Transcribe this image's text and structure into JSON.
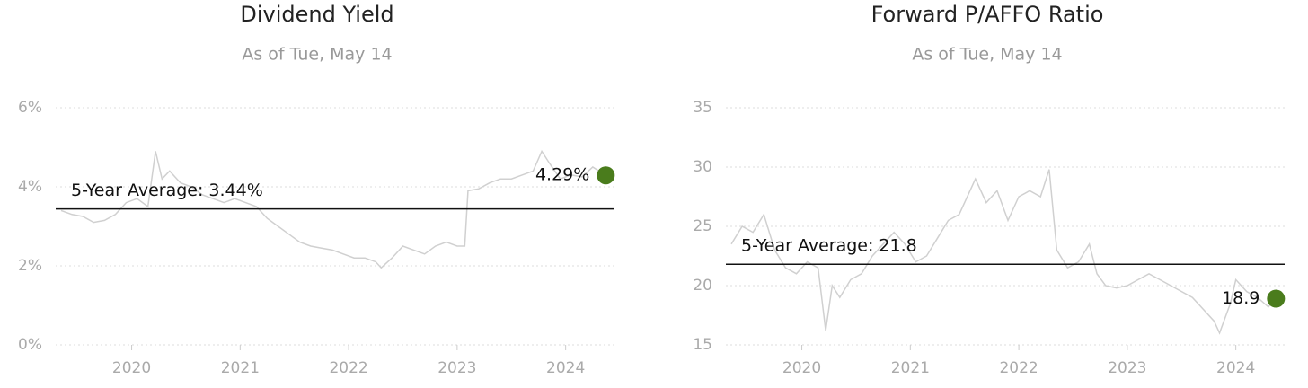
{
  "chart_data": [
    {
      "type": "line",
      "title": "Dividend Yield",
      "subtitle": "As of Tue, May 14",
      "x": [
        2019.35,
        2019.45,
        2019.55,
        2019.65,
        2019.75,
        2019.85,
        2019.95,
        2020.05,
        2020.15,
        2020.22,
        2020.28,
        2020.35,
        2020.45,
        2020.55,
        2020.65,
        2020.75,
        2020.85,
        2020.95,
        2021.05,
        2021.15,
        2021.25,
        2021.35,
        2021.45,
        2021.55,
        2021.65,
        2021.75,
        2021.85,
        2021.95,
        2022.05,
        2022.15,
        2022.25,
        2022.3,
        2022.4,
        2022.5,
        2022.6,
        2022.7,
        2022.8,
        2022.9,
        2023.0,
        2023.07,
        2023.1,
        2023.2,
        2023.3,
        2023.4,
        2023.5,
        2023.6,
        2023.7,
        2023.78,
        2023.85,
        2023.95,
        2024.05,
        2024.15,
        2024.25,
        2024.37
      ],
      "series": [
        {
          "color": "#d0d0d0",
          "values": [
            3.4,
            3.3,
            3.25,
            3.1,
            3.15,
            3.3,
            3.6,
            3.7,
            3.5,
            4.9,
            4.2,
            4.4,
            4.1,
            4.0,
            3.8,
            3.7,
            3.6,
            3.7,
            3.6,
            3.5,
            3.2,
            3.0,
            2.8,
            2.6,
            2.5,
            2.45,
            2.4,
            2.3,
            2.2,
            2.2,
            2.1,
            1.95,
            2.2,
            2.5,
            2.4,
            2.3,
            2.5,
            2.6,
            2.5,
            2.5,
            3.9,
            3.95,
            4.1,
            4.2,
            4.2,
            4.3,
            4.4,
            4.9,
            4.6,
            4.2,
            4.3,
            4.25,
            4.5,
            4.29
          ]
        }
      ],
      "xlim": [
        2019.3,
        2024.45
      ],
      "xticks": [
        2020,
        2021,
        2022,
        2023,
        2024
      ],
      "ylim": [
        0,
        6
      ],
      "yticks": [
        {
          "value": 0,
          "label": "0%"
        },
        {
          "value": 2,
          "label": "2%"
        },
        {
          "value": 4,
          "label": "4%"
        },
        {
          "value": 6,
          "label": "6%"
        }
      ],
      "grid": true,
      "average": {
        "value": 3.44,
        "label": "5-Year Average: 3.44%"
      },
      "current": {
        "value": 4.29,
        "label": "4.29%",
        "color": "#4a7c1c"
      }
    },
    {
      "type": "line",
      "title": "Forward P/AFFO Ratio",
      "subtitle": "As of Tue, May 14",
      "x": [
        2019.35,
        2019.45,
        2019.55,
        2019.65,
        2019.75,
        2019.85,
        2019.95,
        2020.05,
        2020.15,
        2020.22,
        2020.28,
        2020.35,
        2020.45,
        2020.55,
        2020.65,
        2020.75,
        2020.85,
        2020.95,
        2021.05,
        2021.15,
        2021.25,
        2021.35,
        2021.45,
        2021.55,
        2021.6,
        2021.7,
        2021.8,
        2021.9,
        2022.0,
        2022.1,
        2022.2,
        2022.28,
        2022.35,
        2022.45,
        2022.55,
        2022.65,
        2022.72,
        2022.8,
        2022.9,
        2023.0,
        2023.1,
        2023.2,
        2023.3,
        2023.4,
        2023.5,
        2023.6,
        2023.7,
        2023.8,
        2023.85,
        2023.95,
        2024.0,
        2024.1,
        2024.2,
        2024.3,
        2024.37
      ],
      "series": [
        {
          "color": "#d0d0d0",
          "values": [
            23.5,
            25,
            24.5,
            26,
            23,
            21.5,
            21,
            22,
            21.5,
            16.2,
            20,
            19,
            20.5,
            21,
            22.5,
            23.5,
            24.5,
            23.5,
            22,
            22.5,
            24,
            25.5,
            26,
            28,
            29,
            27,
            28,
            25.5,
            27.5,
            28,
            27.5,
            29.8,
            23,
            21.5,
            22,
            23.5,
            21,
            20,
            19.8,
            20,
            20.5,
            21,
            20.5,
            20,
            19.5,
            19,
            18,
            17,
            16,
            18.5,
            20.5,
            19.5,
            19,
            18.2,
            18.9
          ]
        }
      ],
      "xlim": [
        2019.3,
        2024.45
      ],
      "xticks": [
        2020,
        2021,
        2022,
        2023,
        2024
      ],
      "ylim": [
        15,
        35
      ],
      "yticks": [
        15,
        20,
        25,
        30,
        35
      ],
      "grid": true,
      "average": {
        "value": 21.8,
        "label": "5-Year Average: 21.8"
      },
      "current": {
        "value": 18.9,
        "label": "18.9",
        "color": "#4a7c1c"
      }
    }
  ]
}
